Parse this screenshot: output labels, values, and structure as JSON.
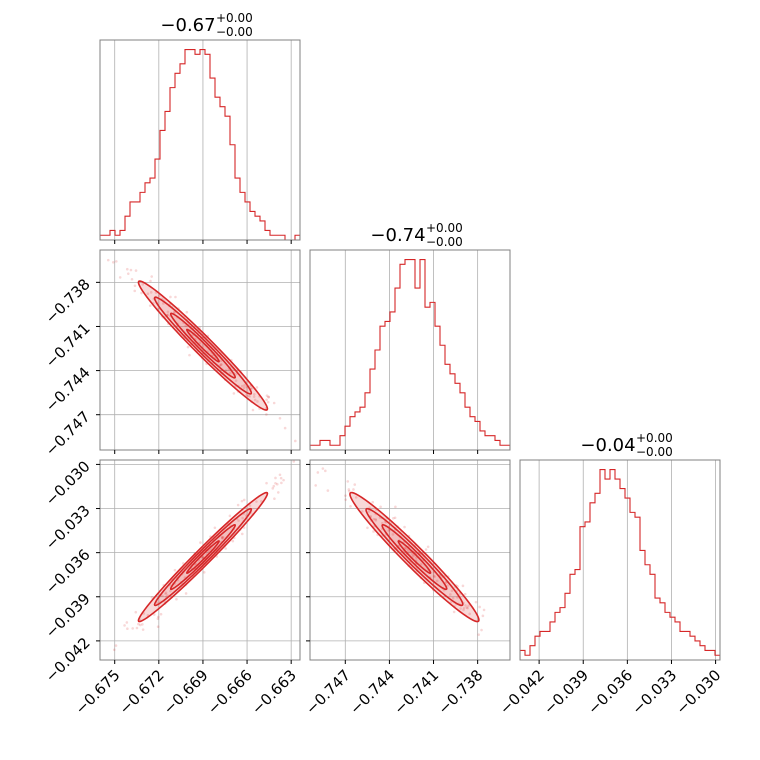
{
  "figure": {
    "type": "corner-plot"
  },
  "colors": {
    "accent": "#d62728",
    "grid": "#b0b0b0",
    "frame": "#808080"
  },
  "titles": [
    {
      "main": "−0.67",
      "sup": "+0.00",
      "sub": "−0.00"
    },
    {
      "main": "−0.74",
      "sup": "+0.00",
      "sub": "−0.00"
    },
    {
      "main": "−0.04",
      "sup": "+0.00",
      "sub": "−0.00"
    }
  ],
  "chart_data": {
    "type": "corner",
    "parameters": [
      {
        "median": -0.669,
        "range": [
          -0.676,
          -0.6624
        ],
        "ticks": [
          -0.675,
          -0.672,
          -0.669,
          -0.666,
          -0.663
        ],
        "tick_labels": [
          "−0.675",
          "−0.672",
          "−0.669",
          "−0.666",
          "−0.663"
        ]
      },
      {
        "median": -0.7423,
        "range": [
          -0.7494,
          -0.7358
        ],
        "ticks": [
          -0.747,
          -0.744,
          -0.741,
          -0.738
        ],
        "tick_labels": [
          "−0.747",
          "−0.744",
          "−0.741",
          "−0.738"
        ]
      },
      {
        "median": -0.0363,
        "range": [
          -0.0433,
          -0.0297
        ],
        "ticks": [
          -0.042,
          -0.039,
          -0.036,
          -0.033,
          -0.03
        ],
        "tick_labels": [
          "−0.042",
          "−0.039",
          "−0.036",
          "−0.033",
          "−0.030"
        ]
      }
    ],
    "histograms": [
      [
        1,
        1,
        2,
        1,
        2,
        5,
        8,
        8,
        10,
        12,
        13,
        17,
        23,
        27,
        32,
        35,
        37,
        40,
        40,
        39,
        40,
        39,
        34,
        30,
        28,
        26,
        20,
        13,
        10,
        8,
        6,
        5,
        4,
        2,
        1,
        1,
        1,
        0,
        0,
        1
      ],
      [
        1,
        1,
        2,
        2,
        1,
        1,
        3,
        5,
        7,
        8,
        9,
        12,
        17,
        21,
        26,
        27,
        29,
        34,
        39,
        40,
        40,
        34,
        40,
        30,
        31,
        26,
        22,
        18,
        16,
        14,
        12,
        9,
        7,
        6,
        4,
        3,
        3,
        2,
        1,
        1
      ],
      [
        2,
        1,
        3,
        5,
        6,
        6,
        8,
        10,
        11,
        14,
        18,
        19,
        28,
        29,
        33,
        35,
        40,
        38,
        40,
        38,
        36,
        34,
        31,
        30,
        23,
        20,
        18,
        13,
        12,
        10,
        9,
        8,
        6,
        6,
        5,
        4,
        3,
        2,
        2,
        1
      ]
    ],
    "hist_ylim": [
      0,
      42
    ],
    "correlations": [
      {
        "row": 1,
        "col": 0,
        "rho": -0.98
      },
      {
        "row": 2,
        "col": 0,
        "rho": 0.985
      },
      {
        "row": 2,
        "col": 1,
        "rho": -0.975
      }
    ],
    "grid": true
  }
}
